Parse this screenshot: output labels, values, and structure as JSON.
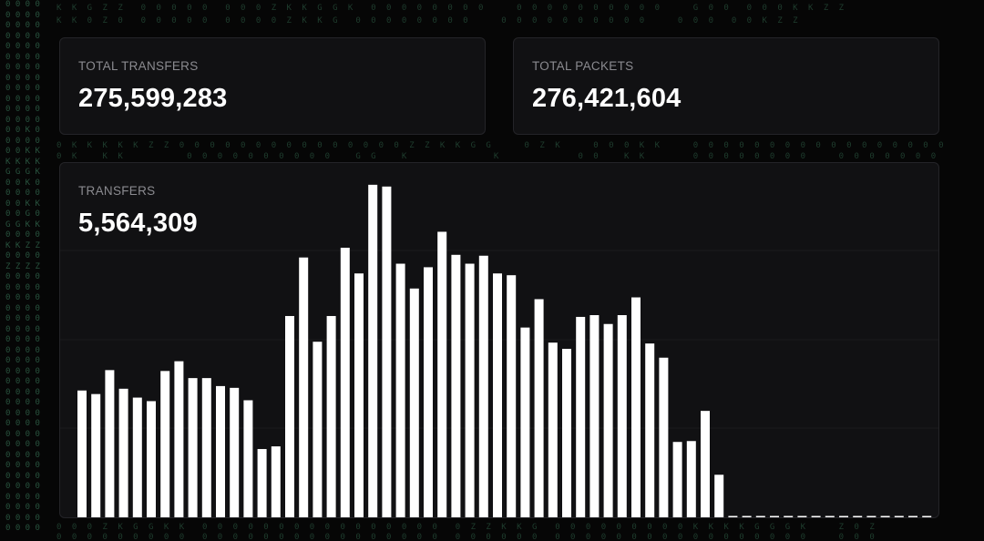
{
  "stats": {
    "total_transfers_label": "TOTAL TRANSFERS",
    "total_transfers_value": "275,599,283",
    "total_packets_label": "TOTAL PACKETS",
    "total_packets_value": "276,421,604"
  },
  "transfers_panel": {
    "label": "TRANSFERS",
    "value": "5,564,309"
  },
  "colors": {
    "background": "#060606",
    "card": "#111113",
    "card_border": "#242428",
    "bar": "#ffffff",
    "label": "#8b8b90",
    "matrix_glyph": "#2c5b44"
  },
  "chart_data": {
    "type": "bar",
    "title": "TRANSFERS",
    "xlabel": "",
    "ylabel": "",
    "grid": true,
    "ylim": [
      0,
      380
    ],
    "values": [
      143,
      139,
      166,
      145,
      135,
      131,
      165,
      176,
      157,
      157,
      148,
      146,
      132,
      77,
      80,
      227,
      293,
      198,
      227,
      304,
      275,
      375,
      373,
      286,
      258,
      282,
      322,
      296,
      286,
      295,
      275,
      273,
      214,
      246,
      197,
      190,
      226,
      228,
      218,
      228,
      248,
      196,
      180,
      85,
      86,
      120,
      48
    ],
    "empty_slots": 15
  }
}
